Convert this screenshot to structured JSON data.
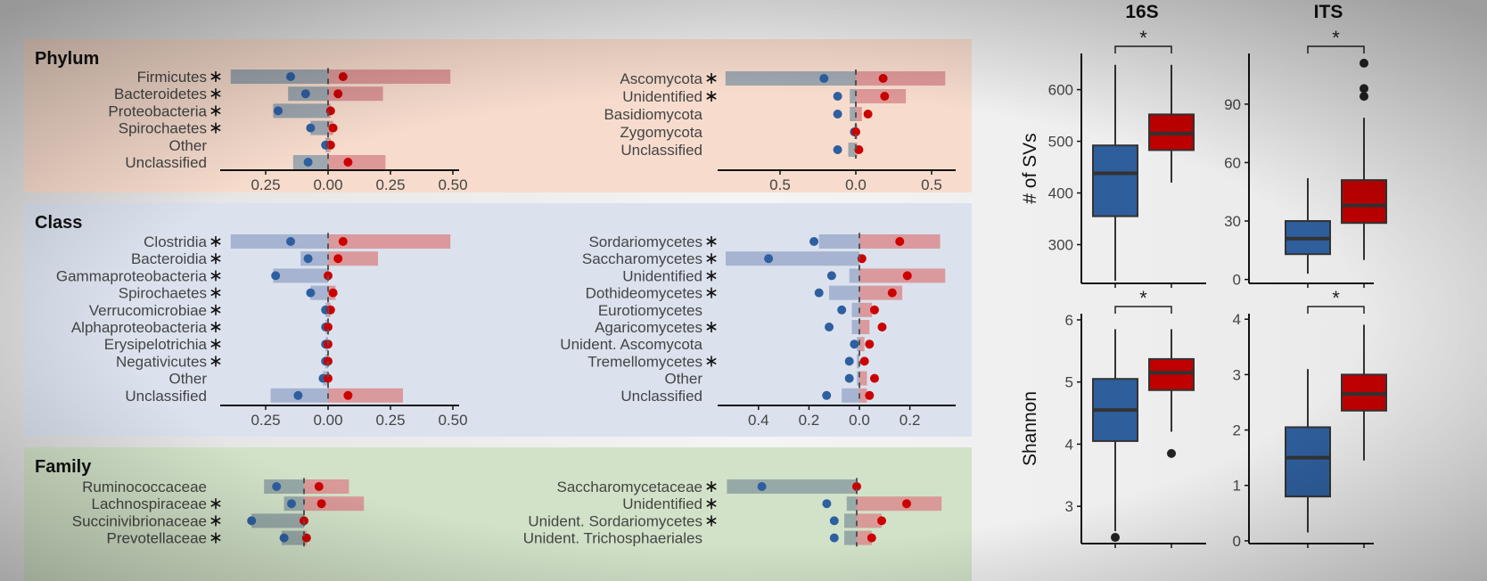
{
  "colors": {
    "blue": "#2e5fa0",
    "red": "#cc0000",
    "phylum_bg": "#f7dccd",
    "class_bg": "#dbe2ee",
    "family_bg": "#d2e2c8",
    "bar_blue_phylum": "#9aa3ad",
    "bar_blue_class": "#a3b1cf",
    "bar_red": "#d98c8e",
    "box_blue": "#2e5e9c",
    "box_red": "#c00000"
  },
  "chart_data": [
    {
      "type": "bar",
      "panel": "Phylum",
      "kingdom": "16S",
      "title": "Phylum",
      "ticks": [
        "0.25",
        "0.00",
        "0.25",
        "0.50"
      ],
      "tick_values": [
        -0.25,
        0,
        0.25,
        0.5
      ],
      "xlim": [
        -0.43,
        0.5
      ],
      "rows": [
        {
          "label": "Firmicutes",
          "sig": true,
          "bar_left": -0.39,
          "bar_right": 0.49,
          "dot_blue": -0.15,
          "dot_red": 0.06
        },
        {
          "label": "Bacteroidetes",
          "sig": true,
          "bar_left": -0.16,
          "bar_right": 0.22,
          "dot_blue": -0.09,
          "dot_red": 0.04
        },
        {
          "label": "Proteobacteria",
          "sig": true,
          "bar_left": -0.22,
          "bar_right": 0.01,
          "dot_blue": -0.2,
          "dot_red": 0.01
        },
        {
          "label": "Spirochaetes",
          "sig": true,
          "bar_left": -0.07,
          "bar_right": 0.02,
          "dot_blue": -0.07,
          "dot_red": 0.02
        },
        {
          "label": "Other",
          "sig": false,
          "bar_left": -0.01,
          "bar_right": 0.01,
          "dot_blue": -0.01,
          "dot_red": 0.01
        },
        {
          "label": "Unclassified",
          "sig": false,
          "bar_left": -0.14,
          "bar_right": 0.23,
          "dot_blue": -0.08,
          "dot_red": 0.08
        }
      ]
    },
    {
      "type": "bar",
      "panel": "Phylum",
      "kingdom": "ITS",
      "ticks": [
        "0.5",
        "0.0",
        "0.5"
      ],
      "tick_values": [
        -0.5,
        0,
        0.5
      ],
      "xlim": [
        -0.85,
        0.66
      ],
      "rows": [
        {
          "label": "Ascomycota",
          "sig": true,
          "bar_left": -0.86,
          "bar_right": 0.59,
          "dot_blue": -0.21,
          "dot_red": 0.18
        },
        {
          "label": "Unidentified",
          "sig": true,
          "bar_left": -0.04,
          "bar_right": 0.33,
          "dot_blue": -0.12,
          "dot_red": 0.19
        },
        {
          "label": "Basidiomycota",
          "sig": false,
          "bar_left": -0.04,
          "bar_right": 0.04,
          "dot_blue": -0.12,
          "dot_red": 0.08
        },
        {
          "label": "Zygomycota",
          "sig": false,
          "bar_left": -0.01,
          "bar_right": 0.01,
          "dot_blue": -0.01,
          "dot_red": 0.0
        },
        {
          "label": "Unclassified",
          "sig": false,
          "bar_left": -0.05,
          "bar_right": 0.01,
          "dot_blue": -0.12,
          "dot_red": 0.02
        }
      ]
    },
    {
      "type": "bar",
      "panel": "Class",
      "kingdom": "16S",
      "title": "Class",
      "ticks": [
        "0.25",
        "0.00",
        "0.25",
        "0.50"
      ],
      "tick_values": [
        -0.25,
        0,
        0.25,
        0.5
      ],
      "xlim": [
        -0.43,
        0.52
      ],
      "rows": [
        {
          "label": "Clostridia",
          "sig": true,
          "bar_left": -0.39,
          "bar_right": 0.49,
          "dot_blue": -0.15,
          "dot_red": 0.06
        },
        {
          "label": "Bacteroidia",
          "sig": true,
          "bar_left": -0.11,
          "bar_right": 0.2,
          "dot_blue": -0.08,
          "dot_red": 0.04
        },
        {
          "label": "Gammaproteobacteria",
          "sig": true,
          "bar_left": -0.22,
          "bar_right": 0.0,
          "dot_blue": -0.21,
          "dot_red": 0.0
        },
        {
          "label": "Spirochaetes",
          "sig": true,
          "bar_left": -0.07,
          "bar_right": 0.03,
          "dot_blue": -0.07,
          "dot_red": 0.02
        },
        {
          "label": "Verrucomicrobiae",
          "sig": true,
          "bar_left": -0.01,
          "bar_right": 0.01,
          "dot_blue": -0.01,
          "dot_red": 0.01
        },
        {
          "label": "Alphaproteobacteria",
          "sig": true,
          "bar_left": -0.01,
          "bar_right": 0.0,
          "dot_blue": -0.01,
          "dot_red": 0.0
        },
        {
          "label": "Erysipelotrichia",
          "sig": true,
          "bar_left": -0.01,
          "bar_right": 0.0,
          "dot_blue": -0.01,
          "dot_red": 0.0
        },
        {
          "label": "Negativicutes",
          "sig": true,
          "bar_left": -0.01,
          "bar_right": 0.0,
          "dot_blue": -0.01,
          "dot_red": 0.0
        },
        {
          "label": "Other",
          "sig": false,
          "bar_left": -0.02,
          "bar_right": 0.0,
          "dot_blue": -0.02,
          "dot_red": 0.0
        },
        {
          "label": "Unclassified",
          "sig": false,
          "bar_left": -0.23,
          "bar_right": 0.3,
          "dot_blue": -0.12,
          "dot_red": 0.08
        }
      ]
    },
    {
      "type": "bar",
      "panel": "Class",
      "kingdom": "ITS",
      "ticks": [
        "0.4",
        "0.2",
        "0.0",
        "0.2"
      ],
      "tick_values": [
        -0.4,
        -0.2,
        0,
        0.2
      ],
      "xlim": [
        -0.53,
        0.38
      ],
      "rows": [
        {
          "label": "Sordariomycetes",
          "sig": true,
          "bar_left": -0.16,
          "bar_right": 0.32,
          "dot_blue": -0.18,
          "dot_red": 0.16
        },
        {
          "label": "Saccharomycetes",
          "sig": true,
          "bar_left": -0.53,
          "bar_right": 0.0,
          "dot_blue": -0.36,
          "dot_red": 0.01
        },
        {
          "label": "Unidentified",
          "sig": true,
          "bar_left": -0.04,
          "bar_right": 0.34,
          "dot_blue": -0.11,
          "dot_red": 0.19
        },
        {
          "label": "Dothideomycetes",
          "sig": true,
          "bar_left": -0.12,
          "bar_right": 0.17,
          "dot_blue": -0.16,
          "dot_red": 0.13
        },
        {
          "label": "Eurotiomycetes",
          "sig": false,
          "bar_left": -0.03,
          "bar_right": 0.05,
          "dot_blue": -0.07,
          "dot_red": 0.06
        },
        {
          "label": "Agaricomycetes",
          "sig": true,
          "bar_left": -0.03,
          "bar_right": 0.04,
          "dot_blue": -0.12,
          "dot_red": 0.09
        },
        {
          "label": "Unident. Ascomycota",
          "sig": false,
          "bar_left": -0.01,
          "bar_right": 0.02,
          "dot_blue": -0.02,
          "dot_red": 0.04
        },
        {
          "label": "Tremellomycetes",
          "sig": true,
          "bar_left": -0.01,
          "bar_right": 0.0,
          "dot_blue": -0.04,
          "dot_red": 0.02
        },
        {
          "label": "Other",
          "sig": false,
          "bar_left": -0.01,
          "bar_right": 0.03,
          "dot_blue": -0.04,
          "dot_red": 0.06
        },
        {
          "label": "Unclassified",
          "sig": false,
          "bar_left": -0.07,
          "bar_right": 0.03,
          "dot_blue": -0.13,
          "dot_red": 0.04
        }
      ]
    },
    {
      "type": "bar",
      "panel": "Family",
      "kingdom": "16S",
      "title": "Family",
      "rows": [
        {
          "label": "Ruminococcaceae",
          "sig": false,
          "bar_left": -0.16,
          "bar_right": 0.18,
          "dot_blue": -0.11,
          "dot_red": 0.06
        },
        {
          "label": "Lachnospiraceae",
          "sig": true,
          "bar_left": -0.08,
          "bar_right": 0.24,
          "dot_blue": -0.05,
          "dot_red": 0.07
        },
        {
          "label": "Succinivibrionaceae",
          "sig": true,
          "bar_left": -0.21,
          "bar_right": 0.0,
          "dot_blue": -0.21,
          "dot_red": 0.0
        },
        {
          "label": "Prevotellaceae",
          "sig": true,
          "bar_left": -0.09,
          "bar_right": 0.01,
          "dot_blue": -0.08,
          "dot_red": 0.01
        }
      ]
    },
    {
      "type": "bar",
      "panel": "Family",
      "kingdom": "ITS",
      "rows": [
        {
          "label": "Saccharomycetaceae",
          "sig": true,
          "bar_left": -0.52,
          "bar_right": 0.0,
          "dot_blue": -0.38,
          "dot_red": 0.0
        },
        {
          "label": "Unidentified",
          "sig": true,
          "bar_left": -0.04,
          "bar_right": 0.34,
          "dot_blue": -0.12,
          "dot_red": 0.2
        },
        {
          "label": "Unident. Sordariomycetes",
          "sig": true,
          "bar_left": -0.05,
          "bar_right": 0.1,
          "dot_blue": -0.09,
          "dot_red": 0.1
        },
        {
          "label": "Unident. Trichosphaeriales",
          "sig": false,
          "bar_left": -0.05,
          "bar_right": 0.06,
          "dot_blue": -0.09,
          "dot_red": 0.06
        }
      ]
    },
    {
      "type": "box",
      "title": "16S",
      "ylabel": "# of SVs",
      "ticks": [
        300,
        400,
        500,
        600
      ],
      "ylim": [
        225,
        670
      ],
      "sig": "*",
      "boxes": [
        {
          "group": "blue",
          "min": 230,
          "q1": 355,
          "median": 438,
          "q3": 492,
          "max": 648,
          "outliers": []
        },
        {
          "group": "red",
          "min": 420,
          "q1": 483,
          "median": 515,
          "q3": 552,
          "max": 648,
          "outliers": []
        }
      ]
    },
    {
      "type": "box",
      "title": "ITS",
      "ylabel": "",
      "ticks": [
        0,
        30,
        60,
        90
      ],
      "ylim": [
        -2,
        116
      ],
      "sig": "*",
      "boxes": [
        {
          "group": "blue",
          "min": 3,
          "q1": 13,
          "median": 21,
          "q3": 30,
          "max": 52,
          "outliers": []
        },
        {
          "group": "red",
          "min": 10,
          "q1": 29,
          "median": 38,
          "q3": 51,
          "max": 83,
          "outliers": [
            94,
            98,
            111
          ]
        }
      ]
    },
    {
      "type": "box",
      "title": "",
      "ylabel": "Shannon",
      "ticks": [
        3,
        4,
        5,
        6
      ],
      "ylim": [
        2.4,
        6.1
      ],
      "sig": "*",
      "boxes": [
        {
          "group": "blue",
          "min": 2.6,
          "q1": 4.05,
          "median": 4.55,
          "q3": 5.05,
          "max": 5.85,
          "outliers": [
            2.5
          ]
        },
        {
          "group": "red",
          "min": 4.2,
          "q1": 4.87,
          "median": 5.15,
          "q3": 5.37,
          "max": 5.85,
          "outliers": [
            3.85
          ]
        }
      ]
    },
    {
      "type": "box",
      "title": "",
      "ylabel": "",
      "ticks": [
        0,
        1,
        2,
        3,
        4
      ],
      "ylim": [
        -0.05,
        4.1
      ],
      "sig": "*",
      "boxes": [
        {
          "group": "blue",
          "min": 0.15,
          "q1": 0.8,
          "median": 1.5,
          "q3": 2.05,
          "max": 3.1,
          "outliers": []
        },
        {
          "group": "red",
          "min": 1.45,
          "q1": 2.35,
          "median": 2.65,
          "q3": 3.0,
          "max": 3.9,
          "outliers": []
        }
      ]
    }
  ]
}
